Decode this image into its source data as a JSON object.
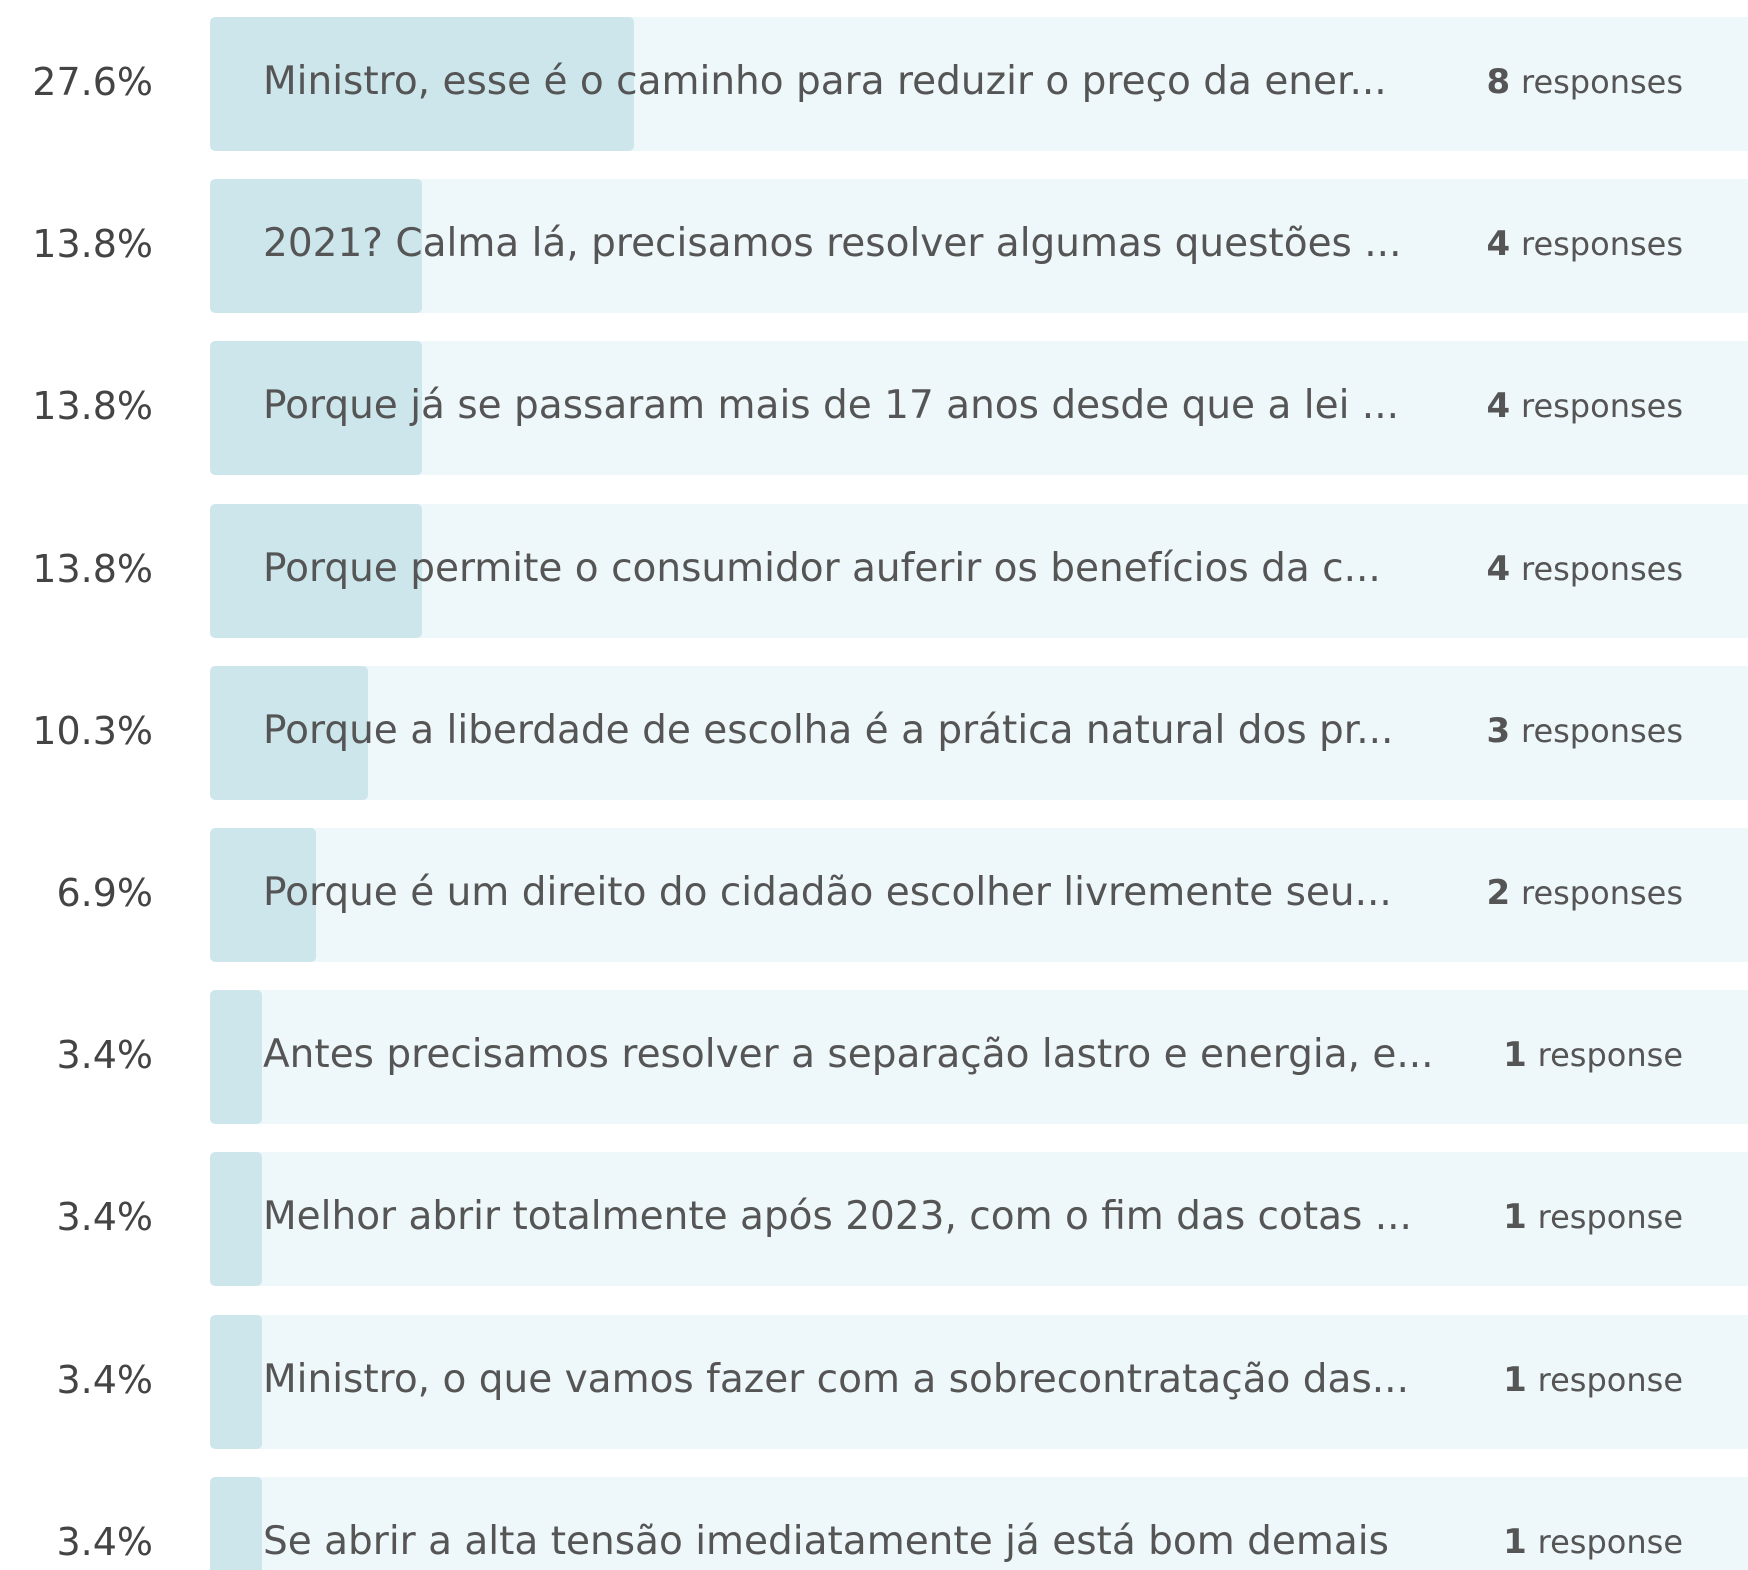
{
  "rows": [
    {
      "percent": {
        "value": 27.6,
        "label": "27.6%"
      },
      "text": "Ministro, esse é o caminho para reduzir o preço da ener...",
      "count": "8",
      "unit": "responses"
    },
    {
      "percent": {
        "value": 13.8,
        "label": "13.8%"
      },
      "text": "2021? Calma lá, precisamos resolver algumas questões ...",
      "count": "4",
      "unit": "responses"
    },
    {
      "percent": {
        "value": 13.8,
        "label": "13.8%"
      },
      "text": "Porque já se passaram mais de 17 anos desde que a lei ...",
      "count": "4",
      "unit": "responses"
    },
    {
      "percent": {
        "value": 13.8,
        "label": "13.8%"
      },
      "text": "Porque permite o consumidor auferir os benefícios da c...",
      "count": "4",
      "unit": "responses"
    },
    {
      "percent": {
        "value": 10.3,
        "label": "10.3%"
      },
      "text": "Porque a liberdade de escolha é a prática natural dos pr...",
      "count": "3",
      "unit": "responses"
    },
    {
      "percent": {
        "value": 6.9,
        "label": "6.9%"
      },
      "text": "Porque é um direito do cidadão escolher livremente seu...",
      "count": "2",
      "unit": "responses"
    },
    {
      "percent": {
        "value": 3.4,
        "label": "3.4%"
      },
      "text": "Antes precisamos resolver a separação lastro e energia, e...",
      "count": "1",
      "unit": "response"
    },
    {
      "percent": {
        "value": 3.4,
        "label": "3.4%"
      },
      "text": "Melhor abrir totalmente após 2023, com o fim das cotas ...",
      "count": "1",
      "unit": "response"
    },
    {
      "percent": {
        "value": 3.4,
        "label": "3.4%"
      },
      "text": "Ministro, o que vamos fazer com a sobrecontratação das...",
      "count": "1",
      "unit": "response"
    },
    {
      "percent": {
        "value": 3.4,
        "label": "3.4%"
      },
      "text": "Se abrir a alta tensão imediatamente já está bom demais",
      "count": "1",
      "unit": "response"
    }
  ]
}
